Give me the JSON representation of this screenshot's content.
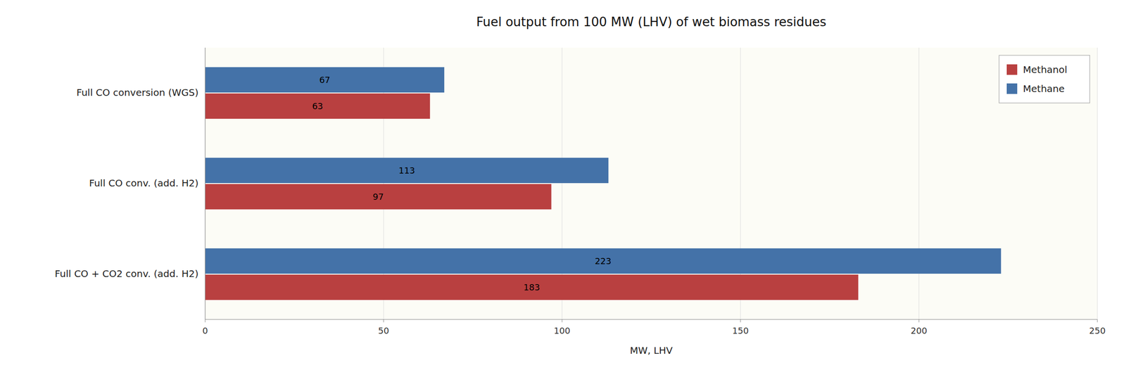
{
  "chart_data": {
    "type": "bar",
    "orientation": "horizontal",
    "title": "Fuel output from 100 MW (LHV) of wet biomass residues",
    "categories": [
      "Full CO conversion (WGS)",
      "Full CO conv. (add. H2)",
      "Full CO + CO2 conv. (add. H2)"
    ],
    "series": [
      {
        "name": "Methanol",
        "color": "#b94040",
        "values": [
          63,
          97,
          183
        ]
      },
      {
        "name": "Methane",
        "color": "#4472a8",
        "values": [
          67,
          113,
          223
        ]
      }
    ],
    "xlabel": "MW, LHV",
    "xlim": [
      0,
      250
    ],
    "xticks": [
      0,
      50,
      100,
      150,
      200,
      250
    ],
    "grid": true,
    "legend": "upper right",
    "data_labels": true
  }
}
